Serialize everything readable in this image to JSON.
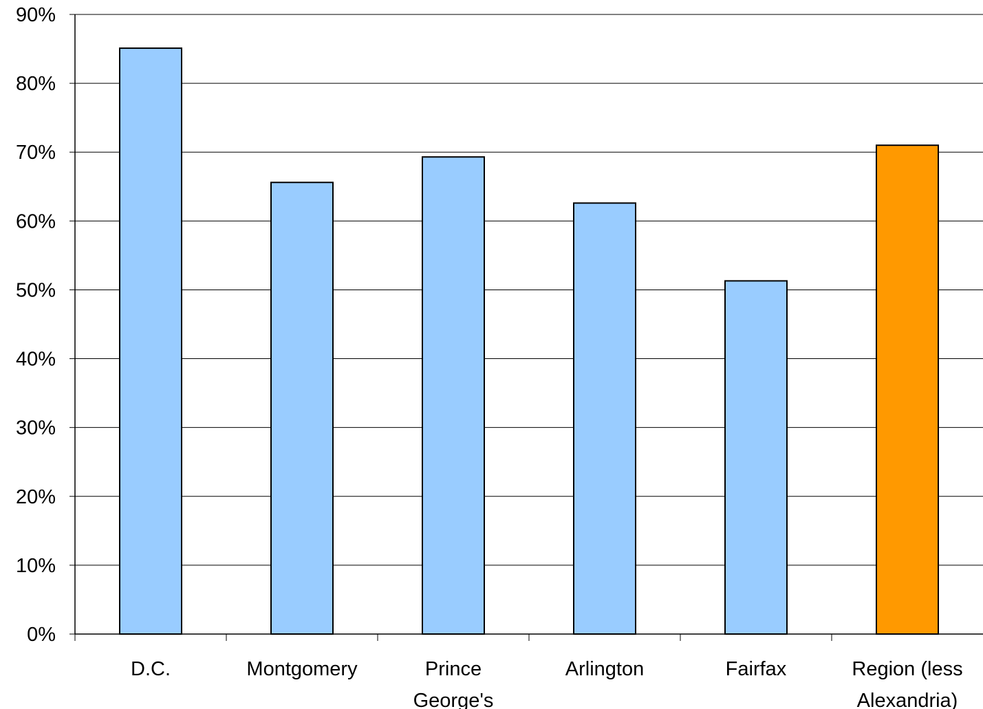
{
  "chart_data": {
    "type": "bar",
    "categories": [
      [
        "D.C."
      ],
      [
        "Montgomery"
      ],
      [
        "Prince",
        "George's"
      ],
      [
        "Arlington"
      ],
      [
        "Fairfax"
      ],
      [
        "Region (less",
        "Alexandria)"
      ]
    ],
    "values": [
      85.1,
      65.6,
      69.3,
      62.6,
      51.3,
      71.0
    ],
    "bar_colors": [
      "#99ccff",
      "#99ccff",
      "#99ccff",
      "#99ccff",
      "#99ccff",
      "#ff9900"
    ],
    "y_ticks": [
      "0%",
      "10%",
      "20%",
      "30%",
      "40%",
      "50%",
      "60%",
      "70%",
      "80%",
      "90%"
    ],
    "ylim": [
      0,
      90
    ],
    "grid": true,
    "legend": "none",
    "title": "",
    "xlabel": "",
    "ylabel": ""
  }
}
